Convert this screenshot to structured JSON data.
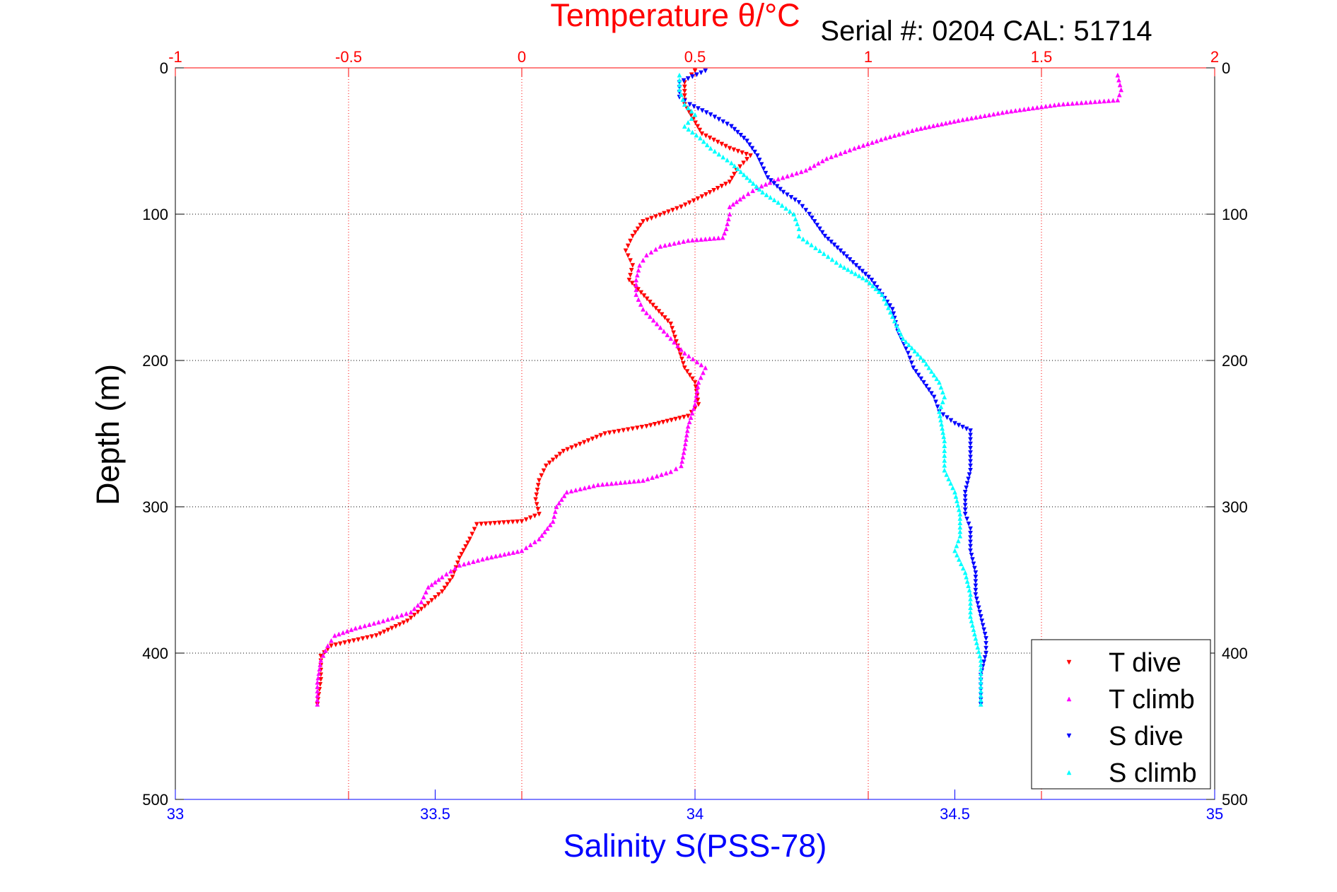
{
  "chart_data": {
    "type": "scatter",
    "title": "Temperature θ/°C",
    "subtitle": "Serial #: 0204   CAL: 51714",
    "ylabel": "Depth (m)",
    "xlabel": "Salinity S(PSS-78)",
    "temperature_axis": {
      "range": [
        -1,
        2
      ],
      "ticks": [
        -1,
        -0.5,
        0,
        0.5,
        1,
        1.5,
        2
      ],
      "tick_labels": [
        "-1",
        "-0.5",
        "0",
        "0.5",
        "1",
        "1.5",
        "2"
      ],
      "position": "top",
      "color": "#ff0000"
    },
    "salinity_axis": {
      "range": [
        33,
        35
      ],
      "ticks": [
        33,
        33.5,
        34,
        34.5,
        35
      ],
      "tick_labels": [
        "33",
        "33.5",
        "34",
        "34.5",
        "35"
      ],
      "position": "bottom",
      "color": "#0000ff"
    },
    "depth_axis": {
      "range": [
        0,
        500
      ],
      "reversed": true,
      "ticks": [
        0,
        100,
        200,
        300,
        400,
        500
      ],
      "tick_labels": [
        "0",
        "100",
        "200",
        "300",
        "400",
        "500"
      ]
    },
    "grid": true,
    "legend_position": "bottom-right",
    "series": [
      {
        "name": "T dive",
        "axis": "temperature",
        "color": "#ff0000",
        "marker": "triangle-down",
        "points": [
          [
            0.5,
            2
          ],
          [
            0.47,
            10
          ],
          [
            0.47,
            25
          ],
          [
            0.52,
            45
          ],
          [
            0.6,
            55
          ],
          [
            0.66,
            60
          ],
          [
            0.62,
            70
          ],
          [
            0.6,
            78
          ],
          [
            0.52,
            88
          ],
          [
            0.46,
            95
          ],
          [
            0.35,
            105
          ],
          [
            0.32,
            115
          ],
          [
            0.3,
            125
          ],
          [
            0.32,
            135
          ],
          [
            0.31,
            145
          ],
          [
            0.37,
            160
          ],
          [
            0.43,
            175
          ],
          [
            0.45,
            190
          ],
          [
            0.47,
            205
          ],
          [
            0.5,
            215
          ],
          [
            0.51,
            230
          ],
          [
            0.48,
            238
          ],
          [
            0.36,
            245
          ],
          [
            0.24,
            250
          ],
          [
            0.12,
            262
          ],
          [
            0.07,
            272
          ],
          [
            0.05,
            282
          ],
          [
            0.04,
            295
          ],
          [
            0.05,
            305
          ],
          [
            0.0,
            310
          ],
          [
            -0.13,
            312
          ],
          [
            -0.15,
            322
          ],
          [
            -0.18,
            335
          ],
          [
            -0.2,
            348
          ],
          [
            -0.23,
            358
          ],
          [
            -0.28,
            368
          ],
          [
            -0.33,
            378
          ],
          [
            -0.42,
            388
          ],
          [
            -0.55,
            395
          ],
          [
            -0.58,
            402
          ],
          [
            -0.58,
            418
          ],
          [
            -0.59,
            435
          ]
        ]
      },
      {
        "name": "T climb",
        "axis": "temperature",
        "color": "#ff00ff",
        "marker": "triangle-up",
        "points": [
          [
            1.72,
            5
          ],
          [
            1.73,
            15
          ],
          [
            1.72,
            22
          ],
          [
            1.55,
            25
          ],
          [
            1.4,
            30
          ],
          [
            1.26,
            36
          ],
          [
            1.14,
            42
          ],
          [
            1.05,
            48
          ],
          [
            0.96,
            55
          ],
          [
            0.88,
            62
          ],
          [
            0.82,
            70
          ],
          [
            0.74,
            76
          ],
          [
            0.68,
            82
          ],
          [
            0.64,
            88
          ],
          [
            0.6,
            95
          ],
          [
            0.6,
            100
          ],
          [
            0.59,
            110
          ],
          [
            0.58,
            116
          ],
          [
            0.48,
            118
          ],
          [
            0.4,
            122
          ],
          [
            0.36,
            128
          ],
          [
            0.34,
            135
          ],
          [
            0.33,
            145
          ],
          [
            0.33,
            155
          ],
          [
            0.35,
            165
          ],
          [
            0.39,
            175
          ],
          [
            0.43,
            185
          ],
          [
            0.47,
            195
          ],
          [
            0.53,
            205
          ],
          [
            0.51,
            215
          ],
          [
            0.5,
            230
          ],
          [
            0.48,
            245
          ],
          [
            0.47,
            260
          ],
          [
            0.46,
            272
          ],
          [
            0.43,
            276
          ],
          [
            0.35,
            282
          ],
          [
            0.22,
            285
          ],
          [
            0.13,
            290
          ],
          [
            0.1,
            300
          ],
          [
            0.09,
            310
          ],
          [
            0.05,
            322
          ],
          [
            0.0,
            330
          ],
          [
            -0.1,
            335
          ],
          [
            -0.18,
            340
          ],
          [
            -0.23,
            348
          ],
          [
            -0.27,
            355
          ],
          [
            -0.29,
            365
          ],
          [
            -0.32,
            372
          ],
          [
            -0.4,
            378
          ],
          [
            -0.48,
            383
          ],
          [
            -0.54,
            388
          ],
          [
            -0.56,
            395
          ],
          [
            -0.58,
            405
          ],
          [
            -0.59,
            420
          ],
          [
            -0.59,
            435
          ]
        ]
      },
      {
        "name": "S dive",
        "axis": "salinity",
        "color": "#0000ff",
        "marker": "triangle-down",
        "points": [
          [
            34.02,
            2
          ],
          [
            33.97,
            10
          ],
          [
            33.97,
            20
          ],
          [
            33.99,
            25
          ],
          [
            34.03,
            32
          ],
          [
            34.07,
            40
          ],
          [
            34.1,
            50
          ],
          [
            34.12,
            60
          ],
          [
            34.14,
            75
          ],
          [
            34.17,
            85
          ],
          [
            34.2,
            92
          ],
          [
            34.22,
            100
          ],
          [
            34.25,
            115
          ],
          [
            34.28,
            125
          ],
          [
            34.31,
            135
          ],
          [
            34.34,
            145
          ],
          [
            34.36,
            155
          ],
          [
            34.38,
            165
          ],
          [
            34.39,
            180
          ],
          [
            34.41,
            195
          ],
          [
            34.42,
            205
          ],
          [
            34.44,
            215
          ],
          [
            34.46,
            225
          ],
          [
            34.47,
            235
          ],
          [
            34.5,
            243
          ],
          [
            34.53,
            248
          ],
          [
            34.53,
            260
          ],
          [
            34.53,
            275
          ],
          [
            34.52,
            290
          ],
          [
            34.52,
            305
          ],
          [
            34.53,
            315
          ],
          [
            34.53,
            330
          ],
          [
            34.54,
            345
          ],
          [
            34.54,
            360
          ],
          [
            34.55,
            375
          ],
          [
            34.56,
            390
          ],
          [
            34.56,
            400
          ],
          [
            34.55,
            415
          ],
          [
            34.55,
            435
          ]
        ]
      },
      {
        "name": "S climb",
        "axis": "salinity",
        "color": "#00ffff",
        "marker": "triangle-up",
        "points": [
          [
            33.97,
            5
          ],
          [
            33.97,
            15
          ],
          [
            33.98,
            25
          ],
          [
            34.0,
            32
          ],
          [
            33.98,
            40
          ],
          [
            34.01,
            48
          ],
          [
            34.03,
            55
          ],
          [
            34.07,
            65
          ],
          [
            34.1,
            75
          ],
          [
            34.13,
            85
          ],
          [
            34.16,
            92
          ],
          [
            34.19,
            100
          ],
          [
            34.2,
            110
          ],
          [
            34.2,
            115
          ],
          [
            34.24,
            125
          ],
          [
            34.28,
            135
          ],
          [
            34.33,
            145
          ],
          [
            34.36,
            155
          ],
          [
            34.38,
            170
          ],
          [
            34.4,
            185
          ],
          [
            34.44,
            200
          ],
          [
            34.47,
            215
          ],
          [
            34.48,
            225
          ],
          [
            34.47,
            235
          ],
          [
            34.48,
            255
          ],
          [
            34.48,
            275
          ],
          [
            34.5,
            290
          ],
          [
            34.51,
            305
          ],
          [
            34.51,
            320
          ],
          [
            34.5,
            330
          ],
          [
            34.52,
            345
          ],
          [
            34.53,
            360
          ],
          [
            34.53,
            375
          ],
          [
            34.54,
            390
          ],
          [
            34.55,
            405
          ],
          [
            34.55,
            420
          ],
          [
            34.55,
            435
          ]
        ]
      }
    ]
  }
}
